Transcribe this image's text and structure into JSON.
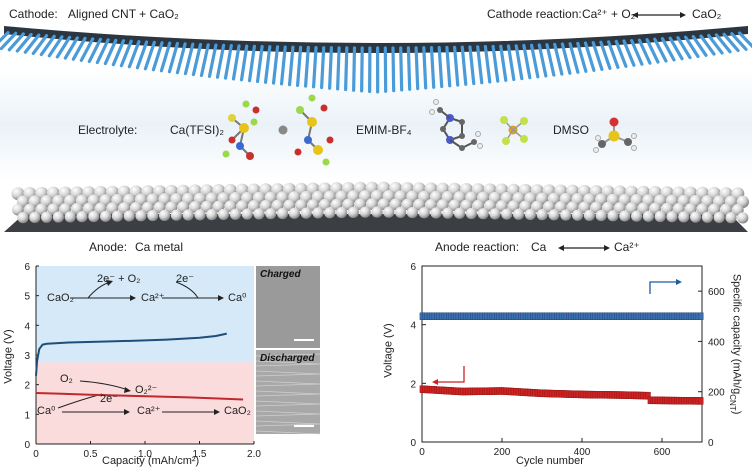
{
  "header": {
    "cathode_label": "Cathode:",
    "cathode_value": "Aligned CNT + CaO₂",
    "cathode_reaction_label": "Cathode reaction:",
    "cathode_reaction_left": "Ca²⁺ + O₂",
    "cathode_reaction_right": "CaO₂"
  },
  "electrolyte": {
    "label": "Electrolyte:",
    "salt": "Ca(TFSI)₂",
    "ionic_liquid": "EMIM-BF₄",
    "solvent": "DMSO"
  },
  "anode": {
    "label": "Anode:",
    "value": "Ca metal",
    "reaction_label": "Anode reaction:",
    "reaction_left": "Ca",
    "reaction_right": "Ca²⁺"
  },
  "colors": {
    "charge_curve": "#1f4e79",
    "discharge_curve": "#c0282d",
    "charged_region": "#d6e9f8",
    "discharged_region": "#fbdcdc",
    "voltage_marker": "#cc2222",
    "capacity_marker": "#3a6fb0",
    "cnt_blue": "#4a9bd8",
    "cnt_dark": "#2c3640",
    "anode_sphere": "#d8d8d8"
  },
  "charge_panel": {
    "reaction_top_left": "CaO₂",
    "reaction_top_e1": "2e⁻ + O₂",
    "reaction_top_mid": "Ca²⁺",
    "reaction_top_e2": "2e⁻",
    "reaction_top_right": "Ca⁰",
    "reaction_bottom_o2": "O₂",
    "reaction_bottom_o2m": "O₂²⁻",
    "reaction_bottom_ca0": "Ca⁰",
    "reaction_bottom_e": "2e⁻",
    "reaction_bottom_ca2": "Ca²⁺",
    "reaction_bottom_product": "CaO₂",
    "sem_charged": "Charged",
    "sem_discharged": "Discharged"
  },
  "chart_data": [
    {
      "type": "line",
      "xlabel": "Capacity (mAh/cm²)",
      "ylabel": "Voltage (V)",
      "xlim": [
        0,
        2.0
      ],
      "ylim": [
        0,
        6
      ],
      "x_ticks": [
        "0",
        "0.5",
        "1.0",
        "1.5",
        "2.0"
      ],
      "y_ticks": [
        "0",
        "1",
        "2",
        "3",
        "4",
        "5",
        "6"
      ],
      "shaded_regions": [
        {
          "y": [
            0,
            2.75
          ],
          "label": "discharge"
        },
        {
          "y": [
            2.75,
            6
          ],
          "label": "charge"
        }
      ],
      "series": [
        {
          "values_x": [
            0,
            0.01,
            0.03,
            0.06,
            0.1,
            0.3,
            0.6,
            0.9,
            1.2,
            1.5,
            1.65,
            1.75
          ],
          "values_y": [
            2.3,
            2.8,
            3.2,
            3.35,
            3.38,
            3.42,
            3.45,
            3.48,
            3.52,
            3.58,
            3.64,
            3.72
          ]
        },
        {
          "values_x": [
            0,
            0.2,
            0.5,
            0.8,
            1.1,
            1.4,
            1.7,
            1.9
          ],
          "values_y": [
            1.72,
            1.7,
            1.66,
            1.63,
            1.6,
            1.57,
            1.53,
            1.5
          ]
        }
      ]
    },
    {
      "type": "scatter",
      "xlabel": "Cycle number",
      "ylabel": "Voltage (V)",
      "y2label": "Specific capacity (mAh/g",
      "y2label_sub": "CNT",
      "y2label_end": ")",
      "xlim": [
        0,
        700
      ],
      "ylim": [
        0,
        6
      ],
      "y2lim": [
        0,
        700
      ],
      "x_ticks": [
        "0",
        "200",
        "400",
        "600"
      ],
      "y_ticks": [
        "0",
        "2",
        "4",
        "6"
      ],
      "y2_ticks": [
        "0",
        "200",
        "400",
        "600"
      ],
      "series": [
        {
          "axis": "left",
          "x_range": [
            1,
            700
          ],
          "segments": [
            {
              "x": [
                0,
                100,
                200,
                300,
                400,
                500,
                560
              ],
              "y": [
                1.8,
                1.72,
                1.74,
                1.66,
                1.62,
                1.6,
                1.58
              ]
            },
            {
              "x": [
                580,
                700
              ],
              "y": [
                1.42,
                1.4
              ]
            }
          ]
        },
        {
          "axis": "right",
          "x_range": [
            1,
            700
          ],
          "constant": 500
        }
      ]
    }
  ]
}
